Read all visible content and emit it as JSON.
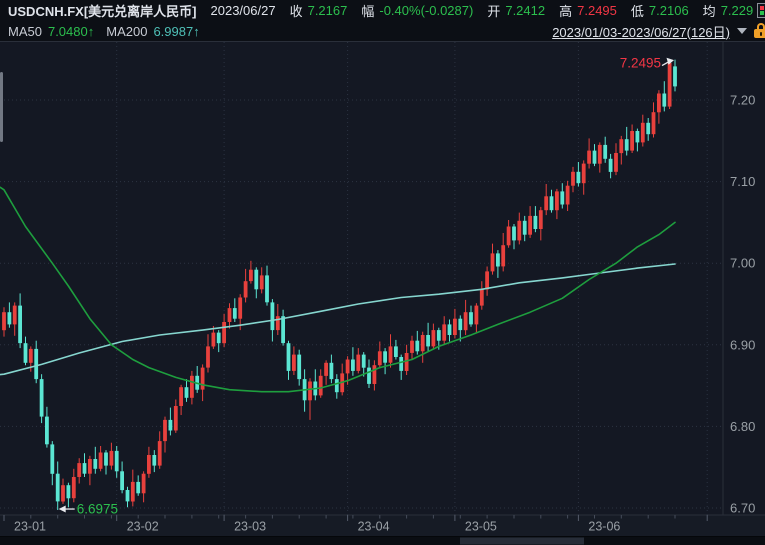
{
  "palette": {
    "bg": "#0c0f15",
    "chart_bg": "#141823",
    "axis_bg": "#161b25",
    "strip_bg": "#0a0d12",
    "strip_block": "#272d38",
    "border": "#2a2f3a",
    "grid": "#2c3342",
    "tick": "#454c5a",
    "text": "#dfe3ea",
    "muted": "#9aa0a6",
    "green": "#2cbf4e",
    "red": "#f23645",
    "teal": "#4fc0b7",
    "up": "#e8413d",
    "down": "#5ce6d3",
    "ma50": "#1e9e3e",
    "ma200": "#86d6cf",
    "orange": "#f0a028",
    "white": "#e8eaee"
  },
  "header": {
    "symbol": "USDCNH.FX[美元兑离岸人民币]",
    "date": "2023/06/27",
    "quote_fields": [
      {
        "label": "收",
        "value": "7.2167",
        "color": "green"
      },
      {
        "label": "幅",
        "value": "-0.40%(-0.0287)",
        "color": "green"
      },
      {
        "label": "开",
        "value": "7.2412",
        "color": "green"
      },
      {
        "label": "高",
        "value": "7.2495",
        "color": "red"
      },
      {
        "label": "低",
        "value": "7.2106",
        "color": "green"
      },
      {
        "label": "均",
        "value": "7.229",
        "color": "green"
      }
    ],
    "ma_fields": [
      {
        "label": "MA50",
        "value": "7.0480↑",
        "color": "green"
      },
      {
        "label": "MA200",
        "value": "6.9987↑",
        "color": "teal"
      }
    ],
    "range_text": "2023/01/03-2023/06/27(126日)"
  },
  "chart_data": {
    "type": "candlestick",
    "title": "USDCNH.FX daily candles with MA50/MA200",
    "x_axis": {
      "labels": [
        [
          "23-01",
          0
        ],
        [
          "23-02",
          21
        ],
        [
          "23-03",
          41
        ],
        [
          "23-04",
          64
        ],
        [
          "23-05",
          84
        ],
        [
          "23-06",
          107
        ]
      ],
      "extra_gridline_index": 131
    },
    "y_axis": {
      "ticks": [
        "7.20",
        "7.10",
        "7.00",
        "6.90",
        "6.80",
        "6.70"
      ],
      "range": [
        6.67,
        7.26
      ],
      "position": "right"
    },
    "annotations": {
      "high": {
        "label": "7.2495",
        "index": 125,
        "price": 7.2495,
        "color": "red"
      },
      "low": {
        "label": "6.6975",
        "index": 10,
        "price": 6.6975,
        "color": "green"
      }
    },
    "ma50": {
      "name": "MA50",
      "current": 7.048,
      "anchors": [
        [
          -0.7,
          7.093
        ],
        [
          0,
          7.09
        ],
        [
          4,
          7.045
        ],
        [
          9,
          7.0
        ],
        [
          12,
          6.972
        ],
        [
          16,
          6.932
        ],
        [
          20,
          6.9
        ],
        [
          24,
          6.882
        ],
        [
          27,
          6.872
        ],
        [
          32,
          6.86
        ],
        [
          37,
          6.851
        ],
        [
          42,
          6.845
        ],
        [
          48,
          6.8425
        ],
        [
          53,
          6.8425
        ],
        [
          59,
          6.847
        ],
        [
          64,
          6.856
        ],
        [
          70,
          6.872
        ],
        [
          76,
          6.882
        ],
        [
          81,
          6.898
        ],
        [
          87,
          6.912
        ],
        [
          92,
          6.925
        ],
        [
          98,
          6.94
        ],
        [
          104,
          6.957
        ],
        [
          109,
          6.98
        ],
        [
          114,
          7.0
        ],
        [
          118,
          7.02
        ],
        [
          122,
          7.035
        ],
        [
          125,
          7.05
        ]
      ]
    },
    "ma200": {
      "name": "MA200",
      "current": 6.9987,
      "anchors": [
        [
          -0.7,
          6.8635
        ],
        [
          0,
          6.864
        ],
        [
          7,
          6.876
        ],
        [
          14,
          6.89
        ],
        [
          22,
          6.904
        ],
        [
          29,
          6.912
        ],
        [
          37,
          6.918
        ],
        [
          44,
          6.924
        ],
        [
          51,
          6.931
        ],
        [
          59,
          6.941
        ],
        [
          66,
          6.95
        ],
        [
          74,
          6.958
        ],
        [
          81,
          6.962
        ],
        [
          89,
          6.968
        ],
        [
          96,
          6.976
        ],
        [
          104,
          6.982
        ],
        [
          111,
          6.988
        ],
        [
          118,
          6.994
        ],
        [
          125,
          6.999
        ]
      ]
    },
    "candles": [
      [
        6.918,
        6.946,
        6.91,
        6.94
      ],
      [
        6.94,
        6.952,
        6.921,
        6.925
      ],
      [
        6.925,
        6.952,
        6.911,
        6.948
      ],
      [
        6.948,
        6.963,
        6.896,
        6.902
      ],
      [
        6.902,
        6.91,
        6.875,
        6.878
      ],
      [
        6.878,
        6.898,
        6.867,
        6.895
      ],
      [
        6.895,
        6.905,
        6.853,
        6.858
      ],
      [
        6.858,
        6.864,
        6.804,
        6.812
      ],
      [
        6.812,
        6.824,
        6.774,
        6.778
      ],
      [
        6.778,
        6.782,
        6.728,
        6.742
      ],
      [
        6.742,
        6.757,
        6.6975,
        6.708
      ],
      [
        6.708,
        6.736,
        6.705,
        6.728
      ],
      [
        6.728,
        6.731,
        6.701,
        6.712
      ],
      [
        6.712,
        6.748,
        6.707,
        6.738
      ],
      [
        6.738,
        6.761,
        6.73,
        6.755
      ],
      [
        6.755,
        6.767,
        6.738,
        6.742
      ],
      [
        6.742,
        6.764,
        6.728,
        6.76
      ],
      [
        6.76,
        6.775,
        6.742,
        6.748
      ],
      [
        6.748,
        6.776,
        6.745,
        6.768
      ],
      [
        6.768,
        6.771,
        6.741,
        6.752
      ],
      [
        6.752,
        6.78,
        6.747,
        6.77
      ],
      [
        6.77,
        6.776,
        6.737,
        6.745
      ],
      [
        6.745,
        6.757,
        6.718,
        6.722
      ],
      [
        6.722,
        6.726,
        6.701,
        6.708
      ],
      [
        6.708,
        6.747,
        6.702,
        6.732
      ],
      [
        6.732,
        6.74,
        6.715,
        6.718
      ],
      [
        6.718,
        6.745,
        6.707,
        6.742
      ],
      [
        6.742,
        6.775,
        6.737,
        6.765
      ],
      [
        6.765,
        6.771,
        6.744,
        6.752
      ],
      [
        6.752,
        6.794,
        6.748,
        6.782
      ],
      [
        6.782,
        6.812,
        6.768,
        6.808
      ],
      [
        6.808,
        6.823,
        6.789,
        6.795
      ],
      [
        6.795,
        6.833,
        6.792,
        6.825
      ],
      [
        6.825,
        6.851,
        6.814,
        6.848
      ],
      [
        6.848,
        6.858,
        6.83,
        6.835
      ],
      [
        6.835,
        6.868,
        6.827,
        6.862
      ],
      [
        6.862,
        6.874,
        6.841,
        6.845
      ],
      [
        6.845,
        6.876,
        6.831,
        6.872
      ],
      [
        6.872,
        6.913,
        6.866,
        6.898
      ],
      [
        6.898,
        6.923,
        6.895,
        6.915
      ],
      [
        6.915,
        6.918,
        6.891,
        6.902
      ],
      [
        6.902,
        6.938,
        6.897,
        6.928
      ],
      [
        6.928,
        6.951,
        6.92,
        6.945
      ],
      [
        6.945,
        6.957,
        6.928,
        6.932
      ],
      [
        6.932,
        6.962,
        6.918,
        6.958
      ],
      [
        6.958,
        6.993,
        6.952,
        6.978
      ],
      [
        6.978,
        7.003,
        6.975,
        6.992
      ],
      [
        6.992,
        6.995,
        6.957,
        6.968
      ],
      [
        6.968,
        6.995,
        6.963,
        6.985
      ],
      [
        6.985,
        6.997,
        6.948,
        6.952
      ],
      [
        6.952,
        6.956,
        6.904,
        6.918
      ],
      [
        6.918,
        6.95,
        6.912,
        6.935
      ],
      [
        6.935,
        6.943,
        6.899,
        6.902
      ],
      [
        6.902,
        6.905,
        6.857,
        6.868
      ],
      [
        6.868,
        6.898,
        6.863,
        6.888
      ],
      [
        6.888,
        6.894,
        6.85,
        6.858
      ],
      [
        6.858,
        6.87,
        6.818,
        6.832
      ],
      [
        6.832,
        6.859,
        6.808,
        6.855
      ],
      [
        6.855,
        6.87,
        6.832,
        6.838
      ],
      [
        6.838,
        6.87,
        6.835,
        6.862
      ],
      [
        6.862,
        6.881,
        6.851,
        6.878
      ],
      [
        6.878,
        6.888,
        6.853,
        6.858
      ],
      [
        6.858,
        6.864,
        6.834,
        6.842
      ],
      [
        6.842,
        6.877,
        6.838,
        6.865
      ],
      [
        6.865,
        6.886,
        6.851,
        6.882
      ],
      [
        6.882,
        6.897,
        6.862,
        6.868
      ],
      [
        6.868,
        6.896,
        6.865,
        6.888
      ],
      [
        6.888,
        6.891,
        6.861,
        6.872
      ],
      [
        6.872,
        6.882,
        6.847,
        6.852
      ],
      [
        6.852,
        6.881,
        6.844,
        6.875
      ],
      [
        6.875,
        6.904,
        6.871,
        6.892
      ],
      [
        6.892,
        6.896,
        6.864,
        6.878
      ],
      [
        6.878,
        6.913,
        6.872,
        6.898
      ],
      [
        6.898,
        6.906,
        6.882,
        6.885
      ],
      [
        6.885,
        6.888,
        6.857,
        6.868
      ],
      [
        6.868,
        6.9,
        6.863,
        6.89
      ],
      [
        6.89,
        6.911,
        6.882,
        6.905
      ],
      [
        6.905,
        6.917,
        6.888,
        6.892
      ],
      [
        6.892,
        6.916,
        6.878,
        6.912
      ],
      [
        6.912,
        6.927,
        6.892,
        6.898
      ],
      [
        6.898,
        6.926,
        6.895,
        6.918
      ],
      [
        6.918,
        6.921,
        6.894,
        6.905
      ],
      [
        6.905,
        6.935,
        6.9,
        6.925
      ],
      [
        6.925,
        6.931,
        6.904,
        6.912
      ],
      [
        6.912,
        6.944,
        6.908,
        6.932
      ],
      [
        6.932,
        6.936,
        6.904,
        6.918
      ],
      [
        6.918,
        6.955,
        6.912,
        6.94
      ],
      [
        6.94,
        6.948,
        6.922,
        6.925
      ],
      [
        6.925,
        6.951,
        6.914,
        6.948
      ],
      [
        6.948,
        6.978,
        6.943,
        6.968
      ],
      [
        6.968,
        6.996,
        6.96,
        6.99
      ],
      [
        6.99,
        7.024,
        6.986,
        7.012
      ],
      [
        7.012,
        7.016,
        6.982,
        6.996
      ],
      [
        6.996,
        7.037,
        6.99,
        7.022
      ],
      [
        7.022,
        7.053,
        7.019,
        7.045
      ],
      [
        7.045,
        7.048,
        7.017,
        7.028
      ],
      [
        7.028,
        7.062,
        7.023,
        7.052
      ],
      [
        7.052,
        7.058,
        7.027,
        7.035
      ],
      [
        7.035,
        7.07,
        7.031,
        7.058
      ],
      [
        7.058,
        7.07,
        7.038,
        7.042
      ],
      [
        7.042,
        7.069,
        7.028,
        7.065
      ],
      [
        7.065,
        7.097,
        7.059,
        7.082
      ],
      [
        7.082,
        7.09,
        7.062,
        7.065
      ],
      [
        7.065,
        7.091,
        7.054,
        7.088
      ],
      [
        7.088,
        7.098,
        7.067,
        7.072
      ],
      [
        7.072,
        7.101,
        7.064,
        7.095
      ],
      [
        7.095,
        7.118,
        7.087,
        7.112
      ],
      [
        7.112,
        7.124,
        7.094,
        7.098
      ],
      [
        7.098,
        7.126,
        7.084,
        7.122
      ],
      [
        7.122,
        7.153,
        7.116,
        7.138
      ],
      [
        7.138,
        7.146,
        7.119,
        7.122
      ],
      [
        7.122,
        7.148,
        7.111,
        7.145
      ],
      [
        7.145,
        7.155,
        7.123,
        7.128
      ],
      [
        7.128,
        7.134,
        7.104,
        7.112
      ],
      [
        7.112,
        7.147,
        7.108,
        7.135
      ],
      [
        7.135,
        7.156,
        7.121,
        7.152
      ],
      [
        7.152,
        7.167,
        7.132,
        7.138
      ],
      [
        7.138,
        7.17,
        7.135,
        7.162
      ],
      [
        7.162,
        7.165,
        7.137,
        7.148
      ],
      [
        7.148,
        7.182,
        7.143,
        7.172
      ],
      [
        7.172,
        7.178,
        7.15,
        7.158
      ],
      [
        7.158,
        7.197,
        7.154,
        7.185
      ],
      [
        7.185,
        7.212,
        7.171,
        7.208
      ],
      [
        7.208,
        7.223,
        7.186,
        7.192
      ],
      [
        7.192,
        7.248,
        7.189,
        7.2454
      ],
      [
        7.2412,
        7.2495,
        7.2106,
        7.2167
      ]
    ],
    "colors": {
      "up_means": "price rose (Chinese convention: red=up)",
      "down_means": "price fell (cyan=down)"
    }
  }
}
